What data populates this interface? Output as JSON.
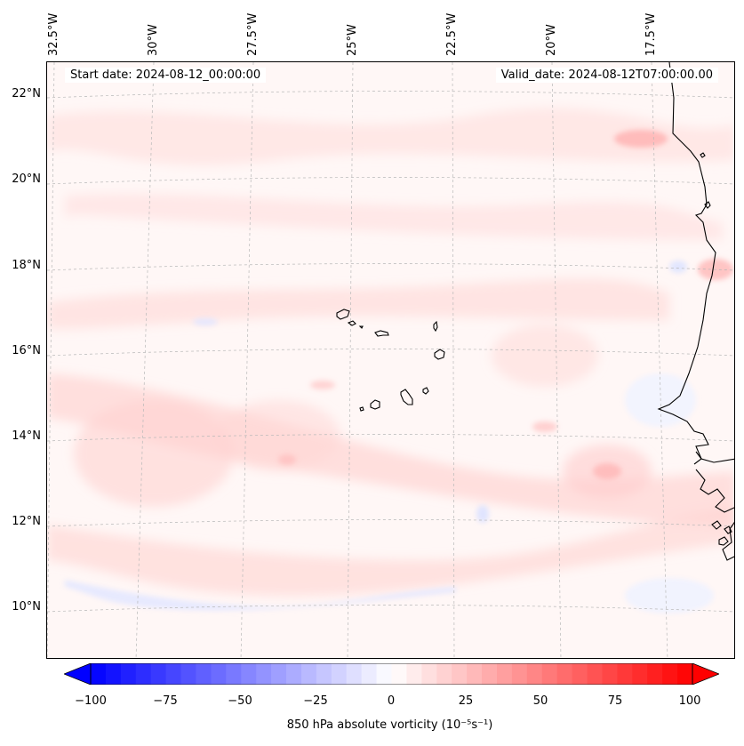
{
  "map": {
    "start_date": "Start date: 2024-08-12_00:00:00",
    "valid_date": "Valid_date: 2024-08-12T07:00:00.00",
    "longitude_labels": [
      "32.5°W",
      "30°W",
      "27.5°W",
      "25°W",
      "22.5°W",
      "20°W",
      "17.5°W"
    ],
    "latitude_labels": [
      "22°N",
      "20°N",
      "18°N",
      "16°N",
      "14°N",
      "12°N",
      "10°N"
    ]
  },
  "colorbar": {
    "ticks": [
      "−100",
      "−75",
      "−50",
      "−25",
      "0",
      "25",
      "50",
      "75",
      "100"
    ],
    "label": "850 hPa absolute vorticity (10⁻⁵s⁻¹)",
    "min_color": "#0000ff",
    "mid_color": "#ffffff",
    "max_color": "#ff0000",
    "levels": 40
  }
}
